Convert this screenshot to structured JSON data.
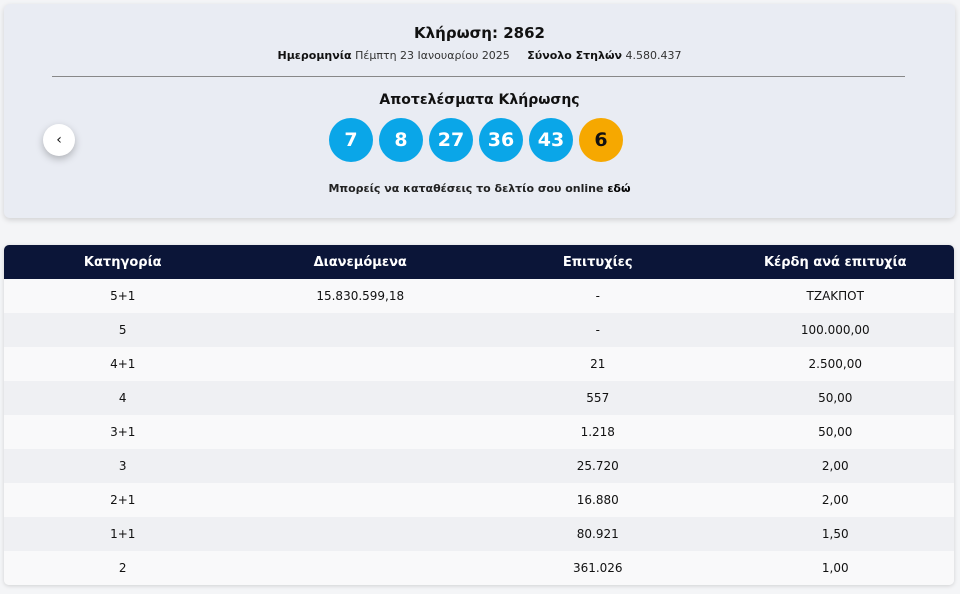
{
  "header": {
    "title": "Κλήρωση: 2862",
    "date_label": "Ημερομηνία",
    "date": "Πέμπτη 23 Ιανουαρίου 2025",
    "columns_label": "Σύνολο Στηλών",
    "columns": "4.580.437"
  },
  "results": {
    "title": "Αποτελέσματα Κλήρωσης",
    "numbers": [
      7,
      8,
      27,
      36,
      43
    ],
    "joker": 6
  },
  "cta": {
    "text": "Μπορείς να καταθέσεις το δελτίο σου online",
    "link": "εδώ"
  },
  "table": {
    "headers": [
      "Κατηγορία",
      "Διανεμόμενα",
      "Επιτυχίες",
      "Κέρδη ανά επιτυχία"
    ],
    "rows": [
      {
        "category": "5+1",
        "distributed": "15.830.599,18",
        "winners": "-",
        "prize": "ΤΖΑΚΠΟΤ"
      },
      {
        "category": "5",
        "winners": "-",
        "prize": "100.000,00"
      },
      {
        "category": "4+1",
        "winners": "21",
        "prize": "2.500,00"
      },
      {
        "category": "4",
        "winners": "557",
        "prize": "50,00"
      },
      {
        "category": "3+1",
        "winners": "1.218",
        "prize": "50,00"
      },
      {
        "category": "3",
        "winners": "25.720",
        "prize": "2,00"
      },
      {
        "category": "2+1",
        "winners": "16.880",
        "prize": "2,00"
      },
      {
        "category": "1+1",
        "winners": "80.921",
        "prize": "1,50"
      },
      {
        "category": "2",
        "winners": "361.026",
        "prize": "1,00"
      }
    ]
  }
}
